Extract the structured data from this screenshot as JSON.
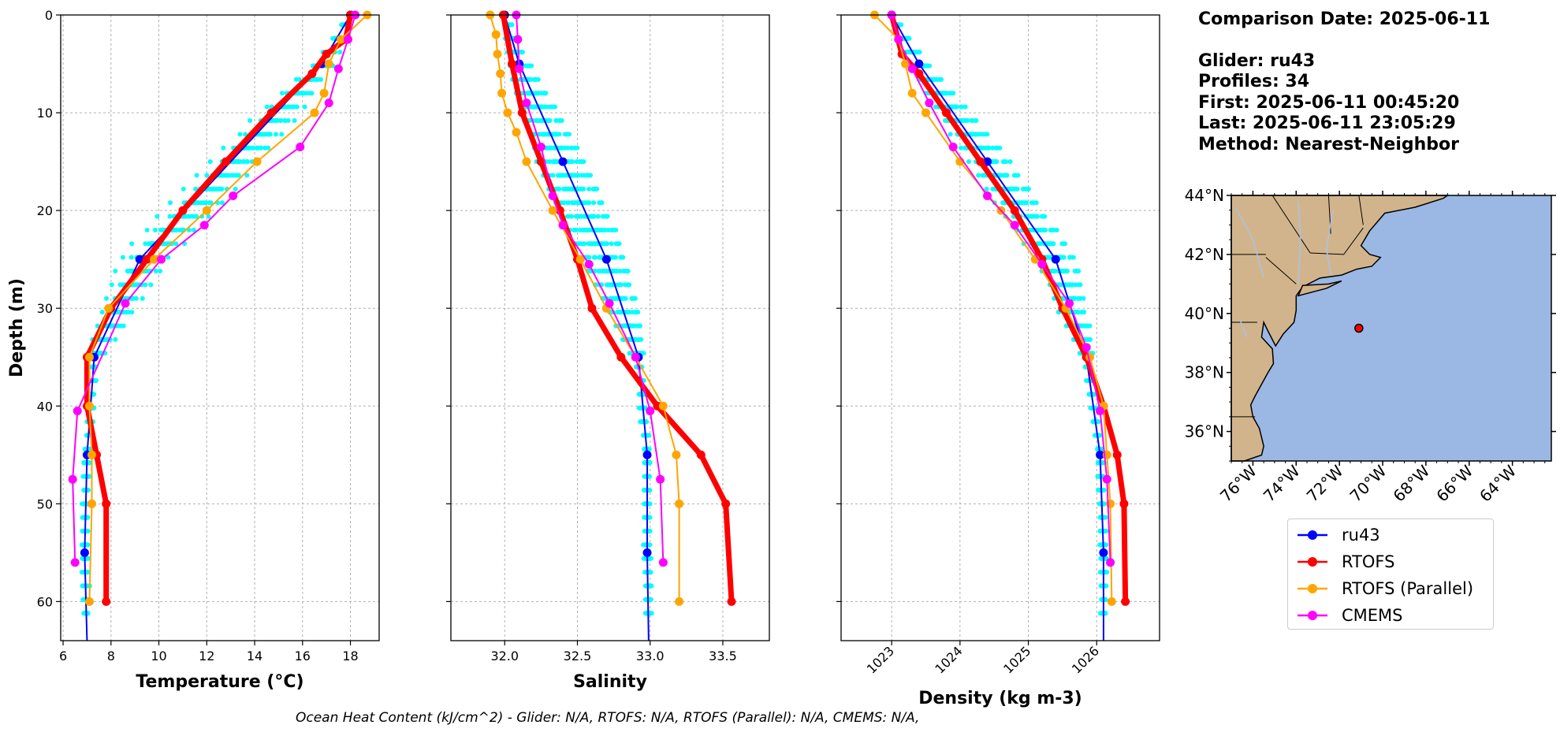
{
  "info": {
    "line1": "Comparison Date: 2025-06-11",
    "line2": "Glider: ru43",
    "line3": "Profiles: 34",
    "line4": "First: 2025-06-11 00:45:20",
    "line5": "Last: 2025-06-11 23:05:29",
    "line6": "Method: Nearest-Neighbor"
  },
  "footer": "Ocean Heat Content (kJ/cm^2) - Glider: N/A,  RTOFS: N/A,  RTOFS (Parallel): N/A,  CMEMS: N/A,",
  "colors": {
    "ru43": "#0000ff",
    "RTOFS": "#ff0000",
    "RTOFS (Parallel)": "#ffa500",
    "CMEMS": "#ff00ff",
    "glider_raw": "#00ffff",
    "land": "#d2b48c",
    "ocean": "#9ab8e3",
    "rivers": "#a6c4e8"
  },
  "legend": [
    "ru43",
    "RTOFS",
    "RTOFS (Parallel)",
    "CMEMS"
  ],
  "chart_data": [
    {
      "type": "line",
      "xlabel": "Temperature (°C)",
      "ylabel": "Depth (m)",
      "xlim": [
        5.9,
        19.2
      ],
      "ylim": [
        64,
        0
      ],
      "xticks": [
        "6",
        "8",
        "10",
        "12",
        "14",
        "16",
        "18"
      ],
      "yticks": [
        "0",
        "10",
        "20",
        "30",
        "40",
        "50",
        "60"
      ],
      "grid": true,
      "scatter_cloud": "glider raw profiles (cyan), x range ~6.8–17.3",
      "series": [
        {
          "name": "ru43",
          "depth": [
            0,
            5,
            25,
            35,
            45,
            55,
            64
          ],
          "values": [
            18.0,
            16.8,
            9.2,
            7.3,
            7.0,
            6.9,
            7.0
          ]
        },
        {
          "name": "RTOFS",
          "depth": [
            0,
            2.5,
            4,
            6,
            10,
            15,
            20,
            25,
            30,
            35,
            40,
            45,
            50,
            60
          ],
          "values": [
            18.0,
            17.8,
            17.0,
            16.4,
            14.7,
            12.8,
            11.0,
            9.5,
            8.0,
            7.0,
            7.0,
            7.4,
            7.8,
            7.8
          ]
        },
        {
          "name": "RTOFS (Parallel)",
          "depth": [
            0,
            2.5,
            5,
            8,
            10,
            15,
            20,
            25,
            30,
            35,
            40,
            45,
            50,
            60
          ],
          "values": [
            18.7,
            17.6,
            17.1,
            16.9,
            16.5,
            14.1,
            12.0,
            9.8,
            7.9,
            7.1,
            7.1,
            7.2,
            7.2,
            7.1
          ]
        },
        {
          "name": "CMEMS",
          "depth": [
            0,
            2.5,
            5.5,
            9,
            13.5,
            18.5,
            21.5,
            25,
            29.5,
            40.5,
            47.5,
            56
          ],
          "values": [
            18.2,
            17.9,
            17.5,
            17.1,
            15.9,
            13.1,
            11.9,
            10.1,
            8.6,
            6.6,
            6.4,
            6.5
          ]
        }
      ]
    },
    {
      "type": "line",
      "xlabel": "Salinity",
      "ylabel": "",
      "xlim": [
        31.63,
        33.82
      ],
      "ylim": [
        64,
        0
      ],
      "xticks": [
        "32.0",
        "32.5",
        "33.0",
        "33.5"
      ],
      "grid": true,
      "scatter_cloud": "glider raw profiles (cyan), x range ~31.85–33.02",
      "series": [
        {
          "name": "ru43",
          "depth": [
            0,
            5,
            15,
            25,
            35,
            45,
            55,
            64
          ],
          "values": [
            32.0,
            32.1,
            32.4,
            32.7,
            32.92,
            32.98,
            32.98,
            32.99
          ]
        },
        {
          "name": "RTOFS",
          "depth": [
            0,
            5,
            10,
            15,
            20,
            25,
            30,
            35,
            40,
            45,
            50,
            60
          ],
          "values": [
            31.99,
            32.05,
            32.12,
            32.25,
            32.38,
            32.5,
            32.6,
            32.8,
            33.05,
            33.35,
            33.52,
            33.56
          ]
        },
        {
          "name": "RTOFS (Parallel)",
          "depth": [
            0,
            2,
            4,
            6,
            8,
            10,
            12,
            15,
            20,
            25,
            30,
            35,
            40,
            45,
            50,
            60
          ],
          "values": [
            31.9,
            31.94,
            31.95,
            31.97,
            31.98,
            32.02,
            32.08,
            32.15,
            32.33,
            32.52,
            32.7,
            32.9,
            33.09,
            33.18,
            33.2,
            33.2
          ]
        },
        {
          "name": "CMEMS",
          "depth": [
            0,
            2.5,
            5.5,
            9,
            13.5,
            18.5,
            21.5,
            25.5,
            29.5,
            35,
            40.5,
            47.5,
            56
          ],
          "values": [
            32.08,
            32.09,
            32.1,
            32.15,
            32.25,
            32.33,
            32.4,
            32.58,
            32.72,
            32.9,
            33.0,
            33.07,
            33.09
          ]
        }
      ]
    },
    {
      "type": "line",
      "xlabel": "Density (kg m-3)",
      "ylabel": "",
      "xlim": [
        1022.26,
        1026.92
      ],
      "ylim": [
        64,
        0
      ],
      "xticks": [
        "1023",
        "1024",
        "1025",
        "1026"
      ],
      "grid": true,
      "scatter_cloud": "glider raw profiles (cyan), x range ~1022.9–1026.1",
      "series": [
        {
          "name": "ru43",
          "depth": [
            0,
            5,
            15,
            25,
            35,
            45,
            55,
            64
          ],
          "values": [
            1023.0,
            1023.4,
            1024.4,
            1025.4,
            1025.85,
            1026.05,
            1026.1,
            1026.1
          ]
        },
        {
          "name": "RTOFS",
          "depth": [
            0,
            4,
            6,
            10,
            15,
            20,
            25,
            30,
            35,
            40,
            45,
            50,
            60
          ],
          "values": [
            1023.0,
            1023.15,
            1023.4,
            1023.8,
            1024.3,
            1024.8,
            1025.2,
            1025.5,
            1025.85,
            1026.1,
            1026.3,
            1026.4,
            1026.42
          ]
        },
        {
          "name": "RTOFS (Parallel)",
          "depth": [
            0,
            2.5,
            5,
            8,
            10,
            15,
            20,
            25,
            30,
            35,
            40,
            45,
            50,
            60
          ],
          "values": [
            1022.75,
            1023.1,
            1023.2,
            1023.3,
            1023.5,
            1024.0,
            1024.6,
            1025.1,
            1025.55,
            1025.9,
            1026.1,
            1026.15,
            1026.2,
            1026.22
          ]
        },
        {
          "name": "CMEMS",
          "depth": [
            0,
            2.5,
            5.5,
            9,
            13.5,
            18.5,
            21.5,
            25.5,
            29.5,
            34,
            40.5,
            47.5,
            56
          ],
          "values": [
            1023.0,
            1023.1,
            1023.3,
            1023.55,
            1023.9,
            1024.4,
            1024.8,
            1025.2,
            1025.6,
            1025.85,
            1026.05,
            1026.15,
            1026.2
          ]
        }
      ]
    }
  ],
  "map": {
    "lat_ticks": [
      "36°N",
      "38°N",
      "40°N",
      "42°N",
      "44°N"
    ],
    "lon_ticks": [
      "76°W",
      "74°W",
      "72°W",
      "70°W",
      "68°W",
      "66°W",
      "64°W"
    ],
    "extent": {
      "lon": [
        -77,
        -62.2
      ],
      "lat": [
        35,
        44
      ]
    },
    "glider_location": {
      "lon": -71.1,
      "lat": 39.5
    }
  }
}
